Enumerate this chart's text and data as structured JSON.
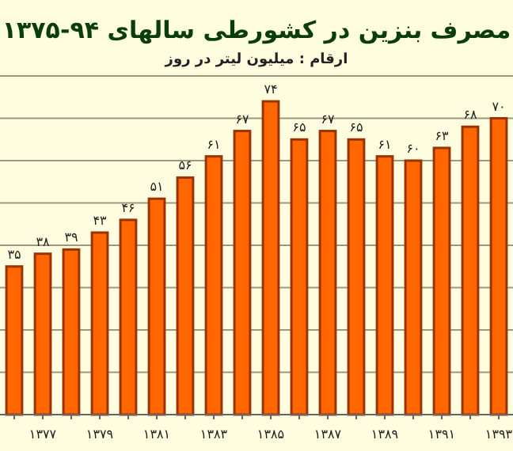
{
  "chart_data": {
    "type": "bar",
    "title": "مصرف بنزین در کشورطی سالهای ۹۴-۱۳۷۵",
    "subtitle": "ارقام : میلیون لیتر در روز",
    "categories": [
      null,
      "۱۳۷۷",
      null,
      "۱۳۷۹",
      null,
      "۱۳۸۱",
      null,
      "۱۳۸۳",
      null,
      "۱۳۸۵",
      null,
      "۱۳۸۷",
      null,
      "۱۳۸۹",
      null,
      "۱۳۹۱",
      null,
      "۱۳۹۳"
    ],
    "values": [
      35,
      38,
      39,
      43,
      46,
      51,
      56,
      61,
      67,
      74,
      65,
      67,
      65,
      61,
      60,
      63,
      68,
      70
    ],
    "value_labels": [
      "۳۵",
      "۳۸",
      "۳۹",
      "۴۳",
      "۴۶",
      "۵۱",
      "۵۶",
      "۶۱",
      "۶۷",
      "۷۴",
      "۶۵",
      "۶۷",
      "۶۵",
      "۶۱",
      "۶۰",
      "۶۳",
      "۶۸",
      "۷۰"
    ],
    "color": "#ff6600",
    "ylim": [
      0,
      80
    ],
    "yticks": [
      {
        "value": 0,
        "label": null
      },
      {
        "value": 10,
        "label": null
      },
      {
        "value": 20,
        "label": null
      },
      {
        "value": 30,
        "label": null
      },
      {
        "value": 40,
        "label": null
      },
      {
        "value": 50,
        "label": null
      },
      {
        "value": 60,
        "label": null
      },
      {
        "value": 70,
        "label": null
      },
      {
        "value": 80,
        "label": null
      }
    ],
    "grid": "y"
  }
}
